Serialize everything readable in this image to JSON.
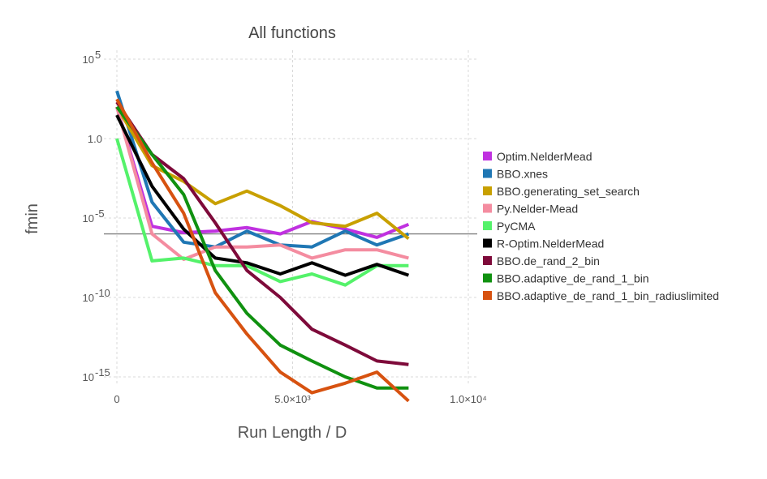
{
  "chart_data": {
    "type": "line",
    "title": "All functions",
    "xlabel": "Run Length / D",
    "ylabel": "fmin",
    "yscale": "log",
    "xlim": [
      -500,
      10300
    ],
    "ylim_log10": [
      -15.5,
      5.5
    ],
    "x_ticks": [
      {
        "value": 0,
        "label": "0"
      },
      {
        "value": 5000,
        "label": "5.0×10³"
      },
      {
        "value": 10000,
        "label": "1.0×10⁴"
      }
    ],
    "y_ticks": [
      {
        "exp": 5,
        "base": "10",
        "sup": "5"
      },
      {
        "exp": 0,
        "base": "1.0",
        "sup": ""
      },
      {
        "exp": -5,
        "base": "10",
        "sup": "-5"
      },
      {
        "exp": -10,
        "base": "10",
        "sup": "-10"
      },
      {
        "exp": -15,
        "base": "10",
        "sup": "-15"
      }
    ],
    "grid": true,
    "legend_position": "right",
    "reference_line": {
      "y": 1e-06,
      "color": "#808080"
    },
    "x": [
      0,
      1000,
      1900,
      2800,
      3700,
      4650,
      5550,
      6500,
      7400,
      8300
    ],
    "series": [
      {
        "name": "Optim.NelderMead",
        "color": "#c031e0",
        "values": [
          100.0,
          3e-06,
          1.2e-06,
          1.5e-06,
          2.5e-06,
          1e-06,
          6e-06,
          2e-06,
          6e-07,
          4e-06
        ]
      },
      {
        "name": "BBO.xnes",
        "color": "#1f77b4",
        "values": [
          1000.0,
          0.0001,
          3e-07,
          1.5e-07,
          1.5e-06,
          2e-07,
          1.5e-07,
          1.5e-06,
          2e-07,
          1e-06
        ]
      },
      {
        "name": "BBO.generating_set_search",
        "color": "#c8a000",
        "values": [
          100.0,
          0.02,
          0.002,
          8e-05,
          0.0005,
          6e-05,
          5e-06,
          3e-06,
          2e-05,
          5e-07
        ]
      },
      {
        "name": "Py.Nelder-Mead",
        "color": "#f48ca0",
        "values": [
          100.0,
          1e-06,
          2.5e-08,
          1.5e-07,
          1.5e-07,
          2e-07,
          3e-08,
          1e-07,
          1e-07,
          3e-08
        ]
      },
      {
        "name": "PyCMA",
        "color": "#54f26a",
        "values": [
          1,
          2e-08,
          3e-08,
          1e-08,
          1e-08,
          1e-09,
          3e-09,
          6e-10,
          1e-08,
          1e-08
        ]
      },
      {
        "name": "R-Optim.NelderMead",
        "color": "#000000",
        "values": [
          30.0,
          0.001,
          2e-06,
          3e-08,
          1.5e-08,
          3e-09,
          1.5e-08,
          2.5e-09,
          1.2e-08,
          2.5e-09
        ]
      },
      {
        "name": "BBO.de_rand_2_bin",
        "color": "#7e0a3a",
        "values": [
          200.0,
          0.1,
          0.003,
          5e-06,
          5e-09,
          1e-10,
          1e-12,
          1e-13,
          1e-14,
          6e-15
        ]
      },
      {
        "name": "BBO.adaptive_de_rand_1_bin",
        "color": "#109110",
        "values": [
          100.0,
          0.1,
          0.0003,
          5e-09,
          1e-11,
          1e-13,
          1e-14,
          1e-15,
          2e-16,
          2e-16
        ]
      },
      {
        "name": "BBO.adaptive_de_rand_1_bin_radiuslimited",
        "color": "#d75210",
        "values": [
          300.0,
          0.03,
          2e-05,
          2e-10,
          5e-13,
          2e-15,
          1e-16,
          4e-16,
          2e-15,
          3e-17
        ]
      }
    ]
  }
}
